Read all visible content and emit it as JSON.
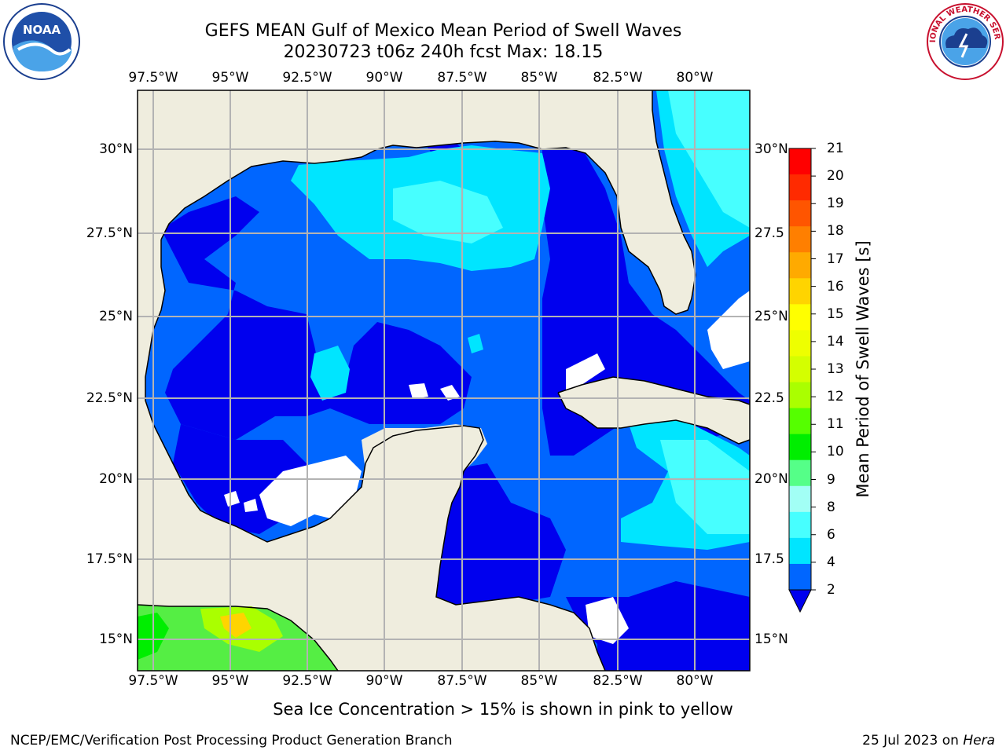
{
  "title": {
    "line1": "GEFS MEAN Gulf of Mexico Mean Period of Swell Waves",
    "line2": "20230723 t06z 240h fcst   Max: 18.15"
  },
  "map": {
    "lon_labels": [
      "97.5°W",
      "95°W",
      "92.5°W",
      "90°W",
      "87.5°W",
      "85°W",
      "82.5°W",
      "80°W"
    ],
    "lat_labels_left": [
      "30°N",
      "27.5°N",
      "25°N",
      "22.5°N",
      "20°N",
      "17.5°N",
      "15°N"
    ],
    "lat_labels_right": [
      "30°N",
      "27.5",
      "25°N",
      "22.5",
      "20°N",
      "17.5",
      "15°N"
    ],
    "colors": {
      "land": "#efedde",
      "grid": "#b3b3b3",
      "lvl_2_4": "#0066ff",
      "lvl_below_2": "#0000ee",
      "lvl_4_6": "#00e5ff",
      "lvl_6_8": "#47ffff",
      "lvl_8_9": "#a2fff5"
    }
  },
  "colorbar": {
    "label": "Mean Period of Swell Waves [s]",
    "ticks": [
      "21",
      "20",
      "19",
      "18",
      "17",
      "16",
      "15",
      "14",
      "13",
      "12",
      "11",
      "10",
      "9",
      "8",
      "6",
      "4",
      "2"
    ],
    "colors": [
      "#ff0000",
      "#ff2a00",
      "#ff5500",
      "#ff7f00",
      "#ffaa00",
      "#ffd400",
      "#ffff00",
      "#eeff00",
      "#d4ff00",
      "#aaff00",
      "#55ff00",
      "#00ee00",
      "#55ff88",
      "#a2fff5",
      "#47ffff",
      "#00e5ff",
      "#0066ff"
    ],
    "under_color": "#0000ee"
  },
  "caption": "Sea Ice Concentration > 15% is shown in pink to yellow",
  "footer": {
    "left": "NCEP/EMC/Verification Post Processing Product Generation Branch",
    "right_prefix": "25 Jul 2023 on ",
    "right_host": "Hera"
  },
  "logos": {
    "noaa": "NOAA",
    "nws": "NATIONAL WEATHER SERVICE"
  }
}
